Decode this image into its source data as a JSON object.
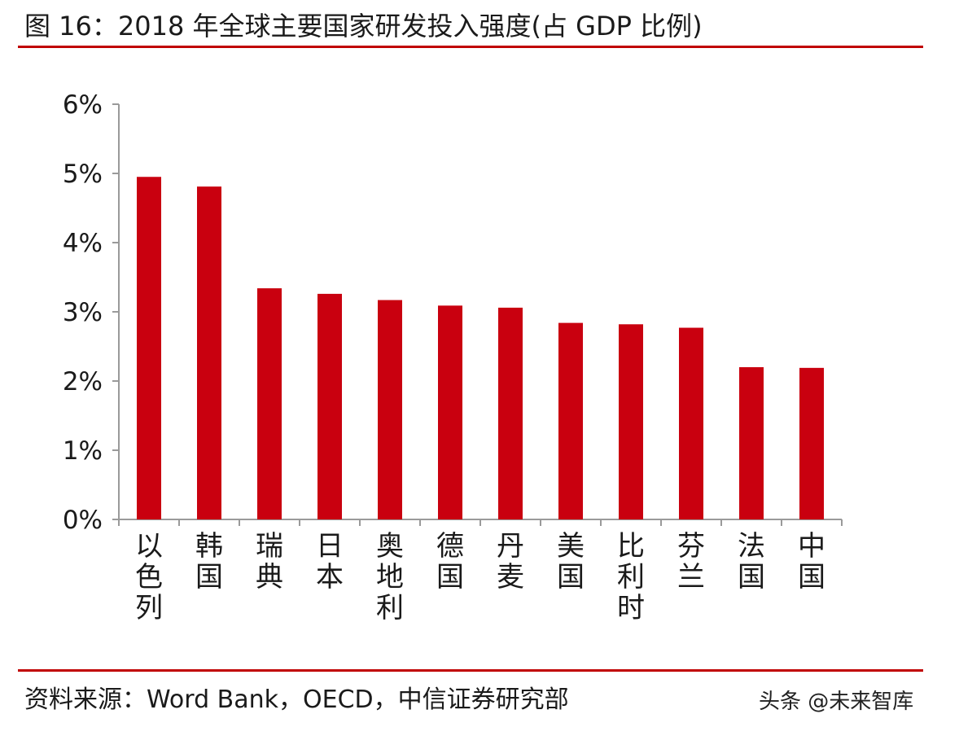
{
  "header": {
    "title": "图 16：2018 年全球主要国家研发投入强度(占 GDP 比例)"
  },
  "footer": {
    "source": "资料来源：Word Bank，OECD，中信证券研究部",
    "watermark": "头条 @未来智库"
  },
  "colors": {
    "bar": "#c9000f",
    "rule": "#c00000",
    "axis": "#9a9a9a"
  },
  "chart_data": {
    "type": "bar",
    "title": "2018 年全球主要国家研发投入强度(占 GDP 比例)",
    "categories": [
      "以色列",
      "韩国",
      "瑞典",
      "日本",
      "奥地利",
      "德国",
      "丹麦",
      "美国",
      "比利时",
      "芬兰",
      "法国",
      "中国"
    ],
    "values": [
      4.95,
      4.81,
      3.34,
      3.26,
      3.17,
      3.09,
      3.06,
      2.84,
      2.82,
      2.77,
      2.2,
      2.19
    ],
    "unit": "%",
    "ylim": [
      0,
      6
    ],
    "yticks": [
      "0%",
      "1%",
      "2%",
      "3%",
      "4%",
      "5%",
      "6%"
    ],
    "grid": false,
    "legend": "none"
  }
}
